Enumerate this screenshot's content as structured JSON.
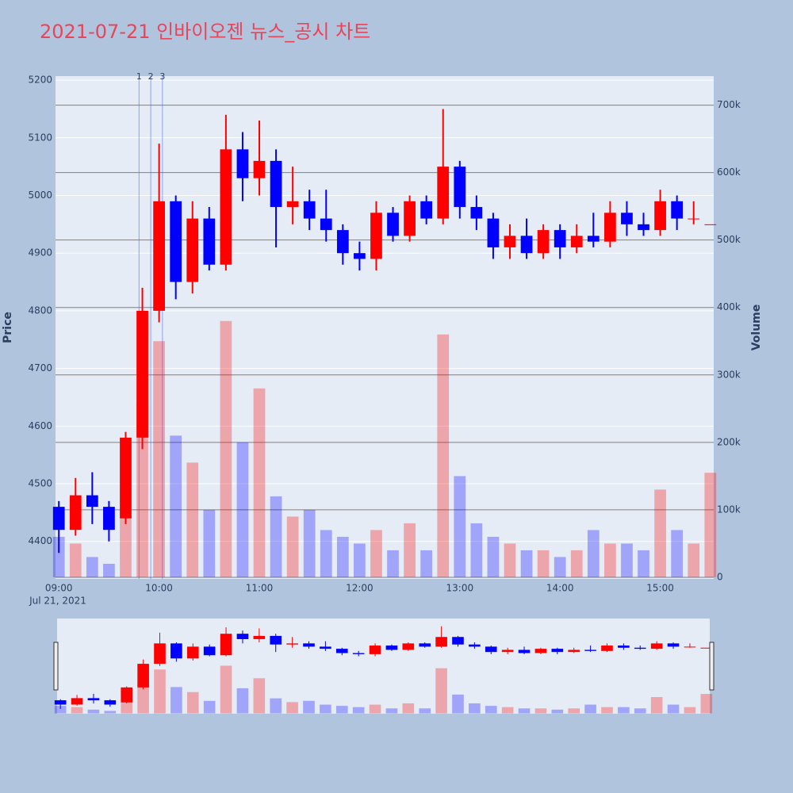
{
  "chart_data": {
    "type": "candlestick",
    "title": "2021-07-21 인바이오젠 뉴스_공시 차트",
    "y_axis_title": "Price",
    "y2_axis_title": "Volume",
    "x_date_label": "Jul 21, 2021",
    "x": [
      "09:00",
      "09:10",
      "09:20",
      "09:30",
      "09:40",
      "09:50",
      "10:00",
      "10:10",
      "10:20",
      "10:30",
      "10:40",
      "10:50",
      "11:00",
      "11:10",
      "11:20",
      "11:30",
      "11:40",
      "11:50",
      "12:00",
      "12:10",
      "12:20",
      "12:30",
      "12:40",
      "12:50",
      "13:00",
      "13:10",
      "13:20",
      "13:30",
      "13:40",
      "13:50",
      "14:00",
      "14:10",
      "14:20",
      "14:30",
      "14:40",
      "14:50",
      "15:00",
      "15:10",
      "15:20",
      "15:30"
    ],
    "open": [
      4460,
      4420,
      4480,
      4460,
      4440,
      4580,
      4800,
      4990,
      4850,
      4960,
      4880,
      5080,
      5030,
      5060,
      4980,
      4990,
      4960,
      4940,
      4900,
      4890,
      4970,
      4930,
      4990,
      4960,
      5050,
      4980,
      4960,
      4910,
      4930,
      4900,
      4940,
      4910,
      4930,
      4920,
      4970,
      4950,
      4940,
      4990,
      4960,
      4950
    ],
    "high": [
      4470,
      4510,
      4520,
      4470,
      4590,
      4840,
      5090,
      5000,
      4990,
      4980,
      5140,
      5110,
      5130,
      5080,
      5050,
      5010,
      5010,
      4950,
      4920,
      4990,
      4980,
      5000,
      5000,
      5150,
      5060,
      5000,
      4970,
      4950,
      4960,
      4950,
      4950,
      4950,
      4970,
      4990,
      4990,
      4970,
      5010,
      5000,
      4990,
      4950
    ],
    "low": [
      4380,
      4410,
      4430,
      4400,
      4430,
      4560,
      4780,
      4820,
      4830,
      4870,
      4870,
      4990,
      5000,
      4910,
      4950,
      4940,
      4920,
      4880,
      4870,
      4870,
      4920,
      4920,
      4950,
      4950,
      4960,
      4940,
      4890,
      4890,
      4890,
      4890,
      4890,
      4900,
      4910,
      4910,
      4930,
      4930,
      4930,
      4940,
      4950,
      4950
    ],
    "close": [
      4420,
      4480,
      4460,
      4420,
      4580,
      4800,
      4990,
      4850,
      4960,
      4880,
      5080,
      5030,
      5060,
      4980,
      4990,
      4960,
      4940,
      4900,
      4890,
      4970,
      4930,
      4990,
      4960,
      5050,
      4980,
      4960,
      4910,
      4930,
      4900,
      4940,
      4910,
      4930,
      4920,
      4970,
      4950,
      4940,
      4990,
      4960,
      4960,
      4950
    ],
    "volume": [
      60000,
      50000,
      30000,
      20000,
      90000,
      260000,
      350000,
      210000,
      170000,
      100000,
      380000,
      200000,
      280000,
      120000,
      90000,
      100000,
      70000,
      60000,
      50000,
      70000,
      40000,
      80000,
      40000,
      360000,
      150000,
      80000,
      60000,
      50000,
      40000,
      40000,
      30000,
      40000,
      70000,
      50000,
      50000,
      40000,
      130000,
      70000,
      50000,
      155000
    ],
    "increasing_color": "#ff0000",
    "decreasing_color": "#0000ff",
    "xlim": [
      "08:58",
      "15:32"
    ],
    "xticks": [
      "09:00",
      "10:00",
      "11:00",
      "12:00",
      "13:00",
      "14:00",
      "15:00"
    ],
    "ylim": [
      4335,
      5207
    ],
    "yticks": [
      4400,
      4500,
      4600,
      4700,
      4800,
      4900,
      5000,
      5100,
      5200
    ],
    "y2lim": [
      -2400,
      743000
    ],
    "y2ticks": [
      0,
      {
        "value": 100000,
        "label": "100k"
      },
      {
        "value": 200000,
        "label": "200k"
      },
      {
        "value": 300000,
        "label": "300k"
      },
      {
        "value": 400000,
        "label": "400k"
      },
      {
        "value": 500000,
        "label": "500k"
      },
      {
        "value": 600000,
        "label": "600k"
      },
      {
        "value": 700000,
        "label": "700k"
      }
    ],
    "news_markers": [
      {
        "label": "1",
        "x": "09:48"
      },
      {
        "label": "2",
        "x": "09:55"
      },
      {
        "label": "3",
        "x": "10:02"
      }
    ]
  }
}
